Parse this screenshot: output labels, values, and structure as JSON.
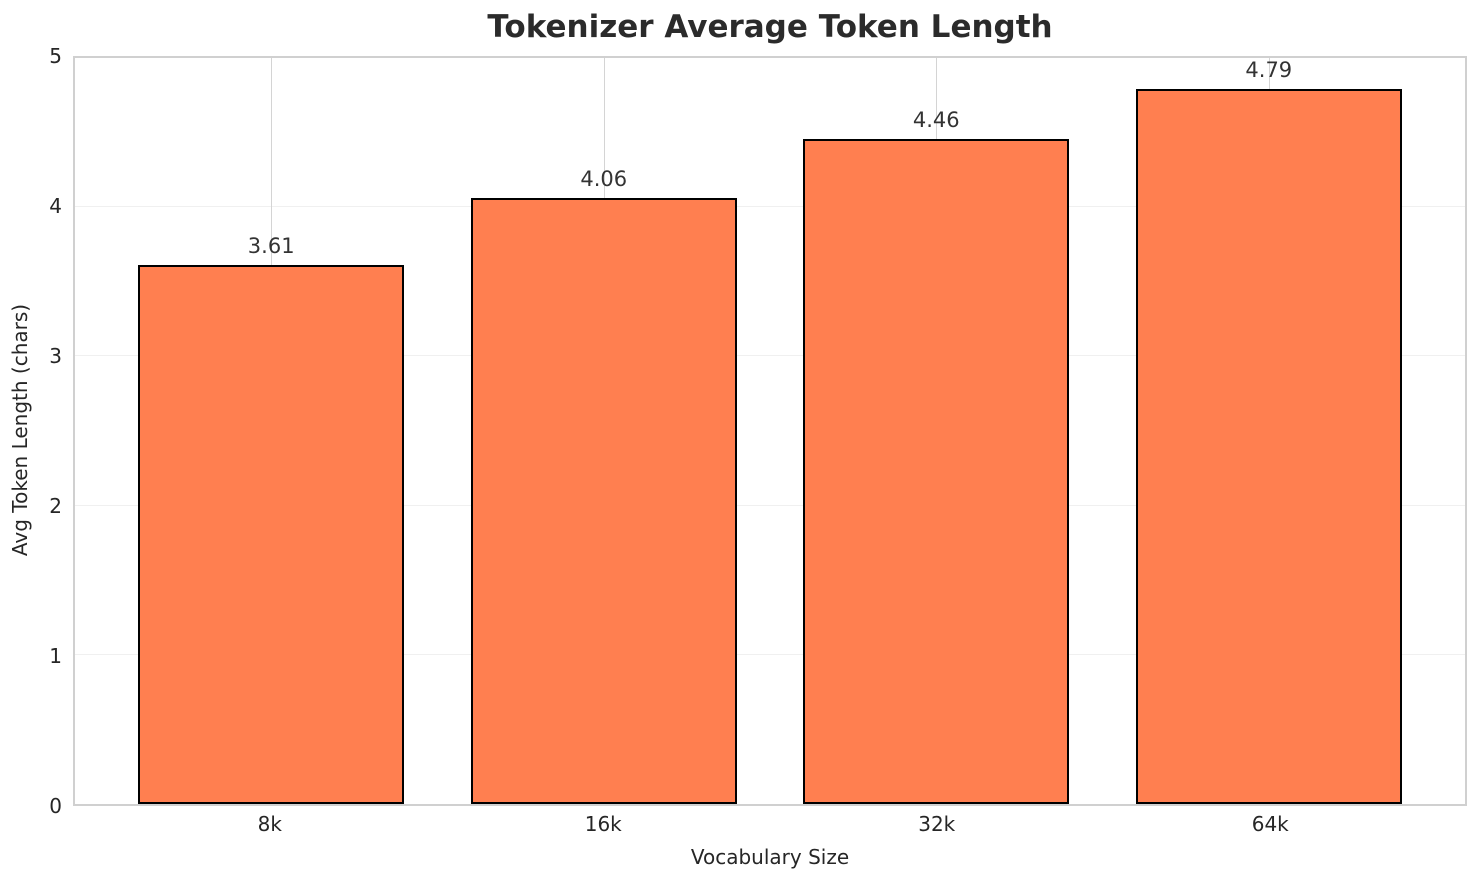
{
  "chart_data": {
    "type": "bar",
    "title": "Tokenizer Average Token Length",
    "xlabel": "Vocabulary Size",
    "ylabel": "Avg Token Length (chars)",
    "categories": [
      "8k",
      "16k",
      "32k",
      "64k"
    ],
    "values": [
      3.61,
      4.06,
      4.46,
      4.79
    ],
    "value_labels": [
      "3.61",
      "4.06",
      "4.46",
      "4.79"
    ],
    "ylim": [
      0,
      5
    ],
    "yticks": [
      0,
      1,
      2,
      3,
      4,
      5
    ],
    "ytick_labels": [
      "0",
      "1",
      "2",
      "3",
      "4",
      "5"
    ],
    "grid": true,
    "legend_position": "none",
    "colors": {
      "bar_fill": "#FF7F50",
      "bar_edge": "#000000",
      "text": "#262626",
      "background": "#ffffff"
    }
  }
}
